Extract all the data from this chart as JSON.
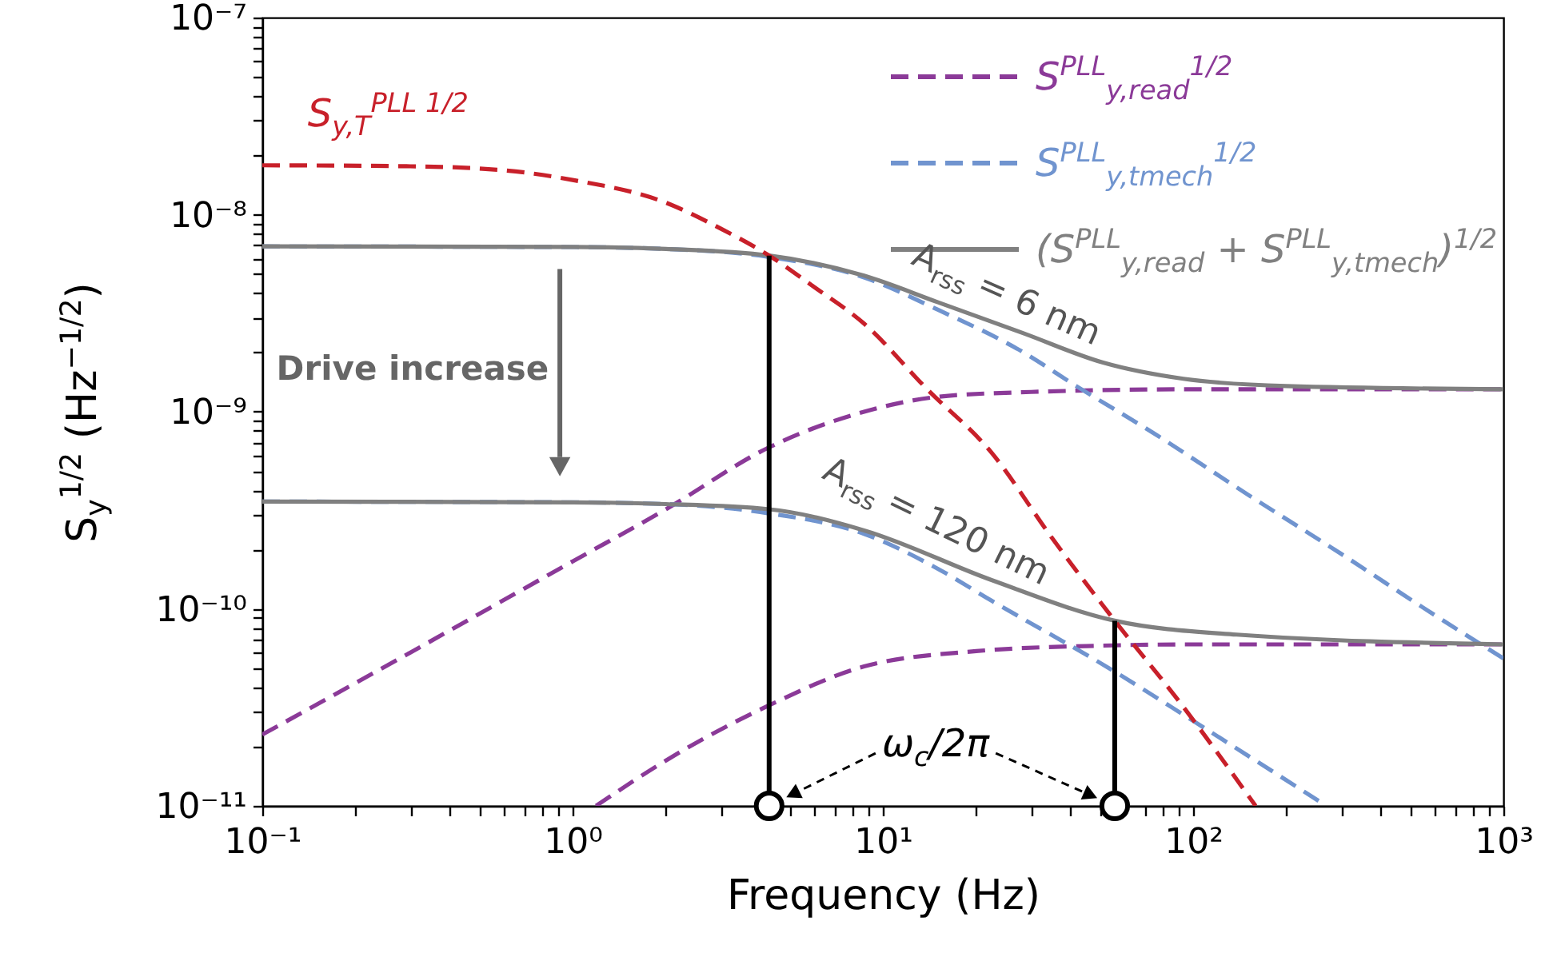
{
  "chart_data": {
    "type": "line",
    "xlabel": "Frequency (Hz)",
    "ylabel": "S$_{y}$$^{1/2}$ (Hz$^{−1/2}$)",
    "log": "xy",
    "legend": "top right",
    "xlim": [
      0.1,
      1000
    ],
    "ylim": [
      1e-11,
      1e-07
    ],
    "xticks": [
      {
        "value": 0.1,
        "label": "10⁻¹"
      },
      {
        "value": 0.2,
        "label": null
      },
      {
        "value": 0.3,
        "label": null
      },
      {
        "value": 0.4,
        "label": null
      },
      {
        "value": 0.5,
        "label": null
      },
      {
        "value": 0.6,
        "label": null
      },
      {
        "value": 0.7,
        "label": null
      },
      {
        "value": 0.8,
        "label": null
      },
      {
        "value": 0.9,
        "label": null
      },
      {
        "value": 1,
        "label": "10⁰"
      },
      {
        "value": 2,
        "label": null
      },
      {
        "value": 3,
        "label": null
      },
      {
        "value": 4,
        "label": null
      },
      {
        "value": 5,
        "label": null
      },
      {
        "value": 6,
        "label": null
      },
      {
        "value": 7,
        "label": null
      },
      {
        "value": 8,
        "label": null
      },
      {
        "value": 9,
        "label": null
      },
      {
        "value": 10,
        "label": "10¹"
      },
      {
        "value": 20,
        "label": null
      },
      {
        "value": 30,
        "label": null
      },
      {
        "value": 40,
        "label": null
      },
      {
        "value": 50,
        "label": null
      },
      {
        "value": 60,
        "label": null
      },
      {
        "value": 70,
        "label": null
      },
      {
        "value": 80,
        "label": null
      },
      {
        "value": 90,
        "label": null
      },
      {
        "value": 100,
        "label": "10²"
      },
      {
        "value": 200,
        "label": null
      },
      {
        "value": 300,
        "label": null
      },
      {
        "value": 400,
        "label": null
      },
      {
        "value": 500,
        "label": null
      },
      {
        "value": 600,
        "label": null
      },
      {
        "value": 700,
        "label": null
      },
      {
        "value": 800,
        "label": null
      },
      {
        "value": 900,
        "label": null
      },
      {
        "value": 1000,
        "label": "10³"
      }
    ],
    "yticks": [
      {
        "value": 1e-11,
        "label": "10⁻¹¹"
      },
      {
        "value": 2e-11,
        "label": null
      },
      {
        "value": 3e-11,
        "label": null
      },
      {
        "value": 4e-11,
        "label": null
      },
      {
        "value": 5e-11,
        "label": null
      },
      {
        "value": 6e-11,
        "label": null
      },
      {
        "value": 7e-11,
        "label": null
      },
      {
        "value": 8e-11,
        "label": null
      },
      {
        "value": 9e-11,
        "label": null
      },
      {
        "value": 1e-10,
        "label": "10⁻¹⁰"
      },
      {
        "value": 2e-10,
        "label": null
      },
      {
        "value": 3e-10,
        "label": null
      },
      {
        "value": 4e-10,
        "label": null
      },
      {
        "value": 5e-10,
        "label": null
      },
      {
        "value": 6e-10,
        "label": null
      },
      {
        "value": 7e-10,
        "label": null
      },
      {
        "value": 8e-10,
        "label": null
      },
      {
        "value": 9e-10,
        "label": null
      },
      {
        "value": 1e-09,
        "label": "10⁻⁹"
      },
      {
        "value": 2e-09,
        "label": null
      },
      {
        "value": 3e-09,
        "label": null
      },
      {
        "value": 4e-09,
        "label": null
      },
      {
        "value": 5e-09,
        "label": null
      },
      {
        "value": 6e-09,
        "label": null
      },
      {
        "value": 7e-09,
        "label": null
      },
      {
        "value": 8e-09,
        "label": null
      },
      {
        "value": 9e-09,
        "label": null
      },
      {
        "value": 1e-08,
        "label": "10⁻⁸"
      },
      {
        "value": 2e-08,
        "label": null
      },
      {
        "value": 3e-08,
        "label": null
      },
      {
        "value": 4e-08,
        "label": null
      },
      {
        "value": 5e-08,
        "label": null
      },
      {
        "value": 6e-08,
        "label": null
      },
      {
        "value": 7e-08,
        "label": null
      },
      {
        "value": 8e-08,
        "label": null
      },
      {
        "value": 9e-08,
        "label": null
      },
      {
        "value": 1e-07,
        "label": "10⁻⁷"
      }
    ],
    "series": [
      {
        "name": "S$^{PLL}$$_{y,read}$$^{1/2}$",
        "color": "#8b3a98",
        "line_style": "dashed",
        "x": [
          0.1,
          0.3,
          1,
          2,
          4.3,
          8.7,
          15,
          30,
          100,
          1000
        ],
        "values": [
          2.3e-11,
          6e-11,
          1.74e-10,
          3.2e-10,
          6.6e-10,
          1e-09,
          1.19e-09,
          1.26e-09,
          1.3e-09,
          1.3e-09
        ]
      },
      {
        "color": "#8b3a98",
        "line_style": "dashed",
        "x": [
          1.19,
          2,
          4.3,
          8.7,
          20,
          50,
          100,
          1000
        ],
        "values": [
          1e-11,
          1.7e-11,
          3.24e-11,
          5.1e-11,
          6.1e-11,
          6.5e-11,
          6.6e-11,
          6.6e-11
        ]
      },
      {
        "name": "S$^{PLL}$$_{y,tmech}$$^{1/2}$",
        "color": "#7094cf",
        "line_style": "dashed",
        "x": [
          0.1,
          1,
          2,
          4.3,
          8.7,
          15,
          28.4,
          42,
          73.5,
          150,
          300,
          600,
          1000
        ],
        "values": [
          6.9e-09,
          6.85e-09,
          6.7e-09,
          6.1e-09,
          4.8e-09,
          3.3e-09,
          2e-09,
          1.35e-09,
          7.9e-10,
          3.8e-10,
          1.9e-10,
          9.3e-11,
          5.6e-11
        ]
      },
      {
        "color": "#7094cf",
        "line_style": "dashed",
        "x": [
          0.1,
          1,
          2,
          4.3,
          8.7,
          15,
          22.4,
          55.9,
          100,
          269
        ],
        "values": [
          3.5e-10,
          3.47e-10,
          3.4e-10,
          3.05e-10,
          2.4e-10,
          1.6e-10,
          1.1e-10,
          4.8e-11,
          2.7e-11,
          1e-11
        ]
      },
      {
        "name": "(S$^{PLL}$$_{y,read}$ + S$^{PLL}$$_{y,tmech}$)$^{1/2}$",
        "color": "#808080",
        "line_style": "solid",
        "x": [
          0.1,
          1,
          2,
          4.3,
          8.7,
          15,
          28.4,
          51,
          93,
          200,
          1000
        ],
        "values": [
          6.9e-09,
          6.86e-09,
          6.7e-09,
          6.2e-09,
          4.9e-09,
          3.6e-09,
          2.5e-09,
          1.78e-09,
          1.47e-09,
          1.35e-09,
          1.3e-09
        ]
      },
      {
        "color": "#808080",
        "line_style": "solid",
        "x": [
          0.1,
          1,
          2,
          4.3,
          8.7,
          22.4,
          55.9,
          138,
          1000
        ],
        "values": [
          3.5e-10,
          3.47e-10,
          3.4e-10,
          3.2e-10,
          2.5e-10,
          1.4e-10,
          8.7e-11,
          7.4e-11,
          6.6e-11
        ]
      },
      {
        "name": "S$_{y,T}$$^{PLL 1/2}$",
        "color": "#c8202a",
        "line_style": "dashed",
        "x": [
          0.1,
          0.3,
          0.6,
          1,
          2,
          3,
          4.3,
          6,
          8.7,
          13.9,
          22.4,
          35,
          55.9,
          90,
          159
        ],
        "values": [
          1.78e-08,
          1.76e-08,
          1.68e-08,
          1.5e-08,
          1.15e-08,
          8.5e-09,
          6.2e-09,
          4.3e-09,
          2.8e-09,
          1.3e-09,
          6.2e-10,
          2.3e-10,
          8.7e-11,
          3.4e-11,
          1e-11
        ]
      },
      {
        "color": "#000000",
        "line_style": "solid",
        "x": [
          4.3,
          4.3
        ],
        "values": [
          1e-11,
          6.2e-09
        ]
      },
      {
        "color": "#000000",
        "line_style": "solid",
        "x": [
          55.9,
          55.9
        ],
        "values": [
          1e-11,
          8.7e-11
        ]
      },
      {
        "type": "scatter",
        "color": "#000000",
        "marker": "circle",
        "x": [
          4.3,
          55.9
        ],
        "values": [
          1e-11,
          1e-11
        ]
      }
    ],
    "annotations": [
      "A$_{rss}$ = 6 nm",
      "A$_{rss}$ = 120 nm",
      "Drive increase",
      "ω$_{c}$/2π"
    ]
  }
}
